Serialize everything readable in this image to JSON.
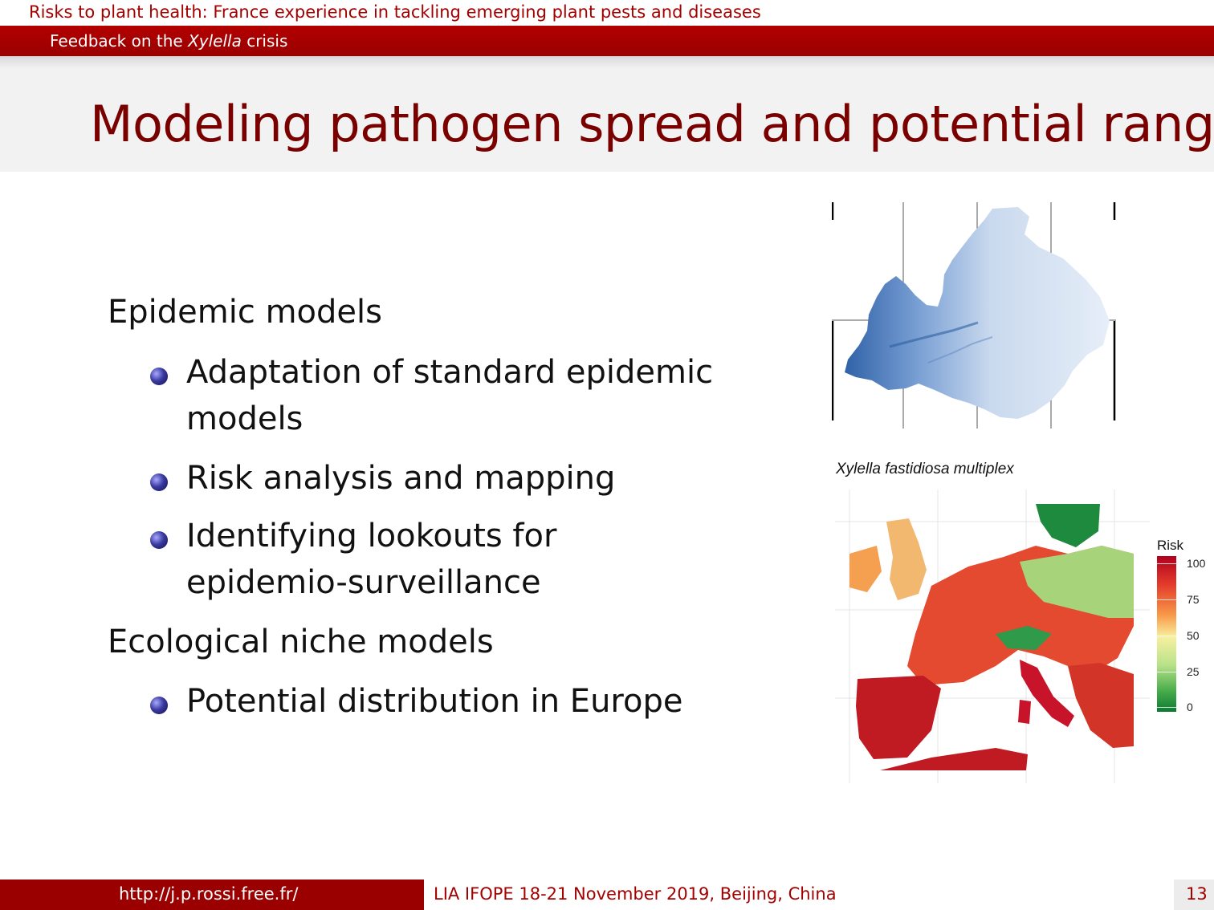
{
  "header": {
    "presentation_title": "Risks to plant health: France experience in tackling emerging plant pests and diseases",
    "section_prefix": "Feedback on the ",
    "section_italic": "Xylella",
    "section_suffix": " crisis"
  },
  "slide": {
    "title": "Modeling pathogen spread and potential range",
    "items": [
      {
        "text": "Epidemic models"
      },
      {
        "text_line1": "Adaptation of standard epidemic",
        "text_line2": "models"
      },
      {
        "text": "Risk analysis and mapping"
      },
      {
        "text_line1": "Identifying lookouts for",
        "text_line2": "epidemio-surveillance"
      },
      {
        "text": "Ecological niche models"
      },
      {
        "text": "Potential distribution in Europe"
      }
    ]
  },
  "figures": {
    "caption": "Xylella fastidiosa multiplex",
    "legend_title": "Risk",
    "legend_values": [
      "100",
      "75",
      "50",
      "25",
      "0"
    ],
    "colors": {
      "risk_high": "#b0001e",
      "risk_mid": "#f7f0a0",
      "risk_low": "#0a7a32",
      "region_blue": "#3f72b8"
    }
  },
  "footer": {
    "url": "http://j.p.rossi.free.fr/",
    "event": "LIA IFOPE 18-21 November 2019, Beijing, China",
    "page": "13"
  }
}
